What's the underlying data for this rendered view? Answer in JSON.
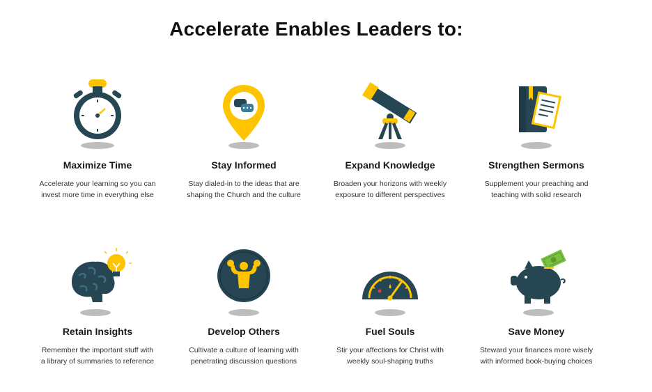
{
  "heading": "Accelerate Enables Leaders to:",
  "colors": {
    "navy": "#264653",
    "yellow": "#FFC400",
    "shadow": "#bdbdbd",
    "green": "#7AC143"
  },
  "items": [
    {
      "icon": "stopwatch-icon",
      "title": "Maximize Time",
      "desc1": "Accelerate your learning so you can",
      "desc2": "invest more time in everything else"
    },
    {
      "icon": "map-pin-chat-icon",
      "title": "Stay Informed",
      "desc1": "Stay dialed-in to the ideas that are",
      "desc2": "shaping the Church and the culture"
    },
    {
      "icon": "telescope-icon",
      "title": "Expand Knowledge",
      "desc1": "Broaden your horizons with weekly",
      "desc2": "exposure to different perspectives"
    },
    {
      "icon": "book-document-icon",
      "title": "Strengthen Sermons",
      "desc1": "Supplement your preaching and",
      "desc2": "teaching with solid research"
    },
    {
      "icon": "brain-lightbulb-icon",
      "title": "Retain Insights",
      "desc1": "Remember the important stuff with",
      "desc2": "a library of summaries to reference"
    },
    {
      "icon": "muscle-man-icon",
      "title": "Develop Others",
      "desc1": "Cultivate a culture of learning with",
      "desc2": "penetrating discussion questions"
    },
    {
      "icon": "fuel-gauge-icon",
      "title": "Fuel Souls",
      "desc1": "Stir your affections for Christ with",
      "desc2": "weekly soul-shaping truths"
    },
    {
      "icon": "piggy-bank-icon",
      "title": "Save Money",
      "desc1": "Steward your finances more wisely",
      "desc2": "with informed book-buying choices"
    }
  ]
}
